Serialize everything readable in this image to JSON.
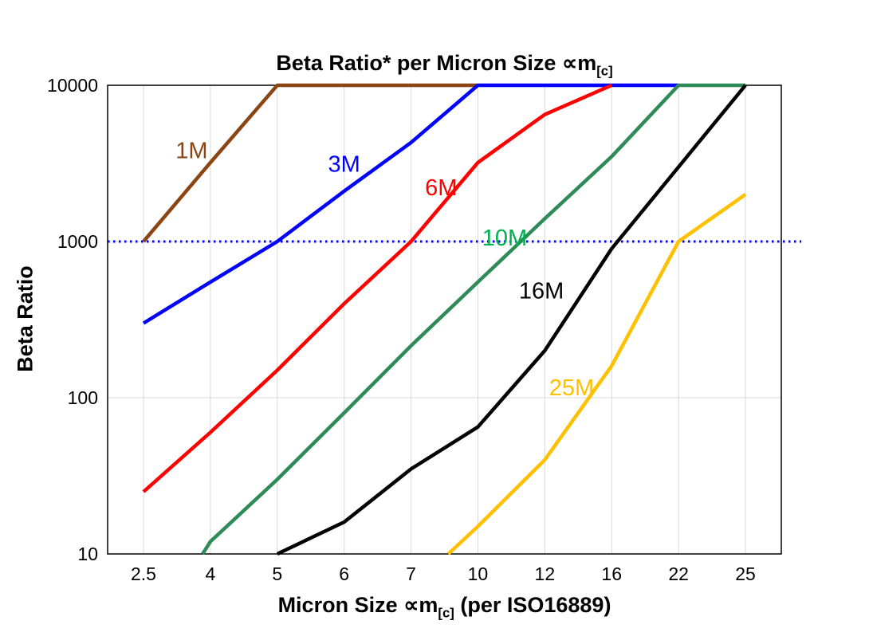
{
  "chart_data": {
    "type": "line",
    "title": {
      "main": "Beta Ratio* per Micron Size ∝m",
      "subscript": "[c]"
    },
    "x_axis": {
      "label_pre": "Micron Size ∝m",
      "label_sub": "[c]",
      "label_post": " (per ISO16889)",
      "categories": [
        "2.5",
        "4",
        "5",
        "6",
        "7",
        "10",
        "12",
        "16",
        "22",
        "25"
      ]
    },
    "y_axis": {
      "label": "Beta Ratio",
      "scale": "log",
      "range": [
        10,
        10000
      ],
      "ticks": [
        10,
        100,
        1000,
        10000
      ]
    },
    "grid": true,
    "grid_color": "#d9d9d9",
    "reference_line": {
      "y": 1000,
      "color": "#0000ff",
      "style": "dotted"
    },
    "series": [
      {
        "name": "1M",
        "color": "#8B4513",
        "values": [
          1000,
          3200,
          10000,
          10000,
          10000,
          10000,
          null,
          null,
          null,
          null
        ],
        "label": {
          "x": 0.72,
          "y": 3800
        }
      },
      {
        "name": "3M",
        "color": "#0000FF",
        "values": [
          300,
          550,
          1000,
          2100,
          4300,
          10000,
          10000,
          10000,
          10000,
          null
        ],
        "label": {
          "x": 3.0,
          "y": 3100
        }
      },
      {
        "name": "6M",
        "color": "#FF0000",
        "values": [
          25,
          60,
          150,
          400,
          1000,
          3200,
          6500,
          10000,
          null,
          null
        ],
        "label": {
          "x": 4.45,
          "y": 2200
        }
      },
      {
        "name": "10M",
        "color": "#2E8B57",
        "label_color": "#00B050",
        "values": [
          2.5,
          12,
          30,
          80,
          215,
          550,
          1400,
          3500,
          10000,
          10000
        ],
        "label": {
          "x": 5.4,
          "y": 1050
        }
      },
      {
        "name": "16M",
        "color": "#000000",
        "values": [
          null,
          null,
          10,
          16,
          35,
          65,
          200,
          900,
          3000,
          10000
        ],
        "label": {
          "x": 5.95,
          "y": 480
        }
      },
      {
        "name": "25M",
        "color": "#FFC000",
        "values": [
          null,
          null,
          null,
          null,
          6,
          15,
          40,
          160,
          1000,
          2000
        ],
        "label": {
          "x": 6.4,
          "y": 115
        }
      }
    ]
  }
}
